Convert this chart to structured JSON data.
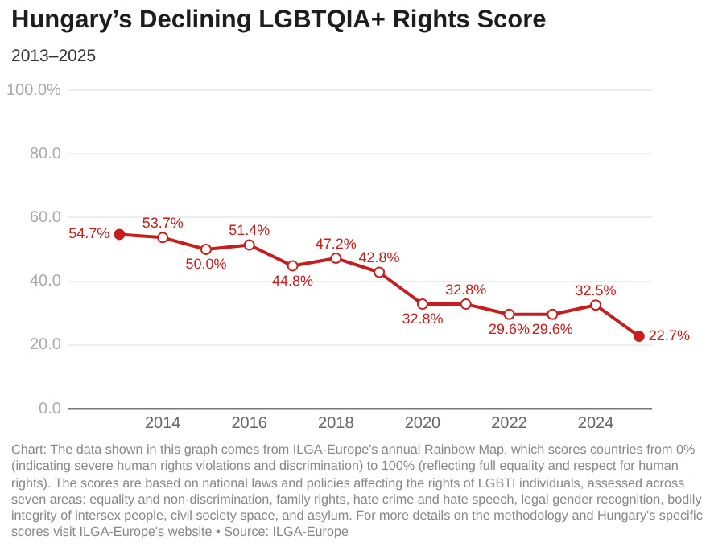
{
  "chart_data": {
    "type": "line",
    "title": "Hungary’s Declining LGBTQIA+ Rights Score",
    "subtitle": "2013–2025",
    "x": [
      2013,
      2014,
      2015,
      2016,
      2017,
      2018,
      2019,
      2020,
      2021,
      2022,
      2023,
      2024,
      2025
    ],
    "series": [
      {
        "color": "#c71e1d",
        "values": [
          54.7,
          53.7,
          50.0,
          51.4,
          44.8,
          47.2,
          42.8,
          32.8,
          32.8,
          29.6,
          29.6,
          32.5,
          22.7
        ],
        "value_labels": [
          "54.7%",
          "53.7%",
          "50.0%",
          "51.4%",
          "44.8%",
          "47.2%",
          "42.8%",
          "32.8%",
          "32.8%",
          "29.6%",
          "29.6%",
          "32.5%",
          "22.7%"
        ]
      }
    ],
    "xlim": [
      2011.8,
      2025.3
    ],
    "xticks": [
      2014,
      2016,
      2018,
      2020,
      2022,
      2024
    ],
    "ylim": [
      0,
      100
    ],
    "yticks": [
      {
        "value": 0,
        "label": "0.0"
      },
      {
        "value": 20,
        "label": "20.0"
      },
      {
        "value": 40,
        "label": "40.0"
      },
      {
        "value": 60,
        "label": "60.0"
      },
      {
        "value": 80,
        "label": "80.0"
      },
      {
        "value": 100,
        "label": "100.0%"
      }
    ],
    "grid": "y",
    "legend": false,
    "marker": "circle",
    "line_style": "solid",
    "annotations": [
      "Chart: The data shown in this graph comes from ILGA-Europe's annual Rainbow Map, which scores countries from 0% (indicating severe human rights violations and discrimination) to 100% (reflecting full equality and respect for human rights). The scores are based on national laws and policies affecting the rights of LGBTI individuals, assessed across seven areas: equality and non-discrimination, family rights, hate crime and hate speech, legal gender recognition, bodily integrity of intersex people, civil society space, and asylum. For more details on the methodology and Hungary's specific scores visit ILGA-Europe's website • Source: ILGA-Europe"
    ]
  }
}
